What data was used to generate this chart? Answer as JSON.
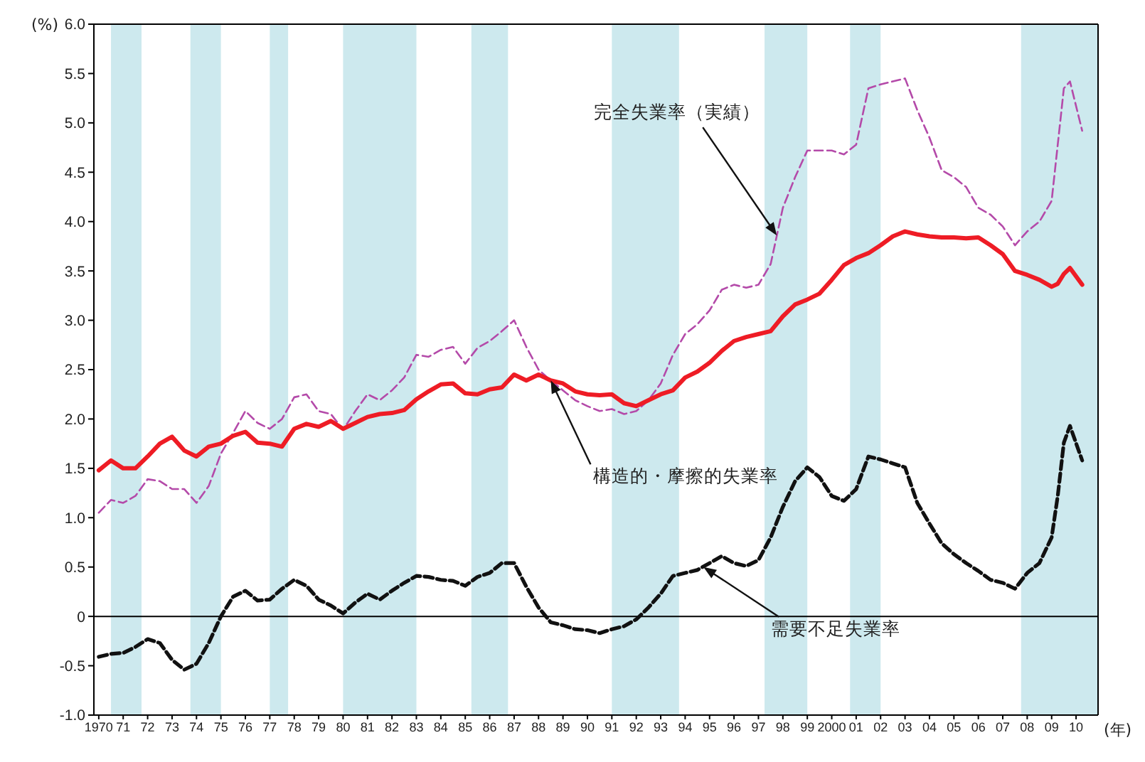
{
  "chart_data": {
    "type": "line",
    "xlabel": "(年)",
    "ylabel": "(%)",
    "x": [
      1970,
      1970.5,
      1971,
      1971.5,
      1972,
      1972.5,
      1973,
      1973.5,
      1974,
      1974.5,
      1975,
      1975.5,
      1976,
      1976.5,
      1977,
      1977.5,
      1978,
      1978.5,
      1979,
      1979.5,
      1980,
      1980.5,
      1981,
      1981.5,
      1982,
      1982.5,
      1983,
      1983.5,
      1984,
      1984.5,
      1985,
      1985.5,
      1986,
      1986.5,
      1987,
      1987.5,
      1988,
      1988.5,
      1989,
      1989.5,
      1990,
      1990.5,
      1991,
      1991.5,
      1992,
      1992.5,
      1993,
      1993.5,
      1994,
      1994.5,
      1995,
      1995.5,
      1996,
      1996.5,
      1997,
      1997.5,
      1998,
      1998.5,
      1999,
      1999.5,
      2000,
      2000.5,
      2001,
      2001.5,
      2002,
      2002.5,
      2003,
      2003.5,
      2004,
      2004.5,
      2005,
      2005.5,
      2006,
      2006.5,
      2007,
      2007.5,
      2008,
      2008.5,
      2009,
      2009.25,
      2009.5,
      2009.75,
      2010.25
    ],
    "series": [
      {
        "color": "#b44aa9",
        "line_style": "dashed",
        "values": [
          1.05,
          1.18,
          1.15,
          1.22,
          1.39,
          1.37,
          1.29,
          1.29,
          1.15,
          1.32,
          1.65,
          1.86,
          2.08,
          1.96,
          1.9,
          2.0,
          2.22,
          2.25,
          2.08,
          2.05,
          1.89,
          2.08,
          2.25,
          2.19,
          2.29,
          2.42,
          2.65,
          2.63,
          2.7,
          2.73,
          2.56,
          2.72,
          2.79,
          2.89,
          3.0,
          2.73,
          2.5,
          2.39,
          2.29,
          2.19,
          2.13,
          2.08,
          2.1,
          2.05,
          2.08,
          2.19,
          2.36,
          2.65,
          2.86,
          2.96,
          3.1,
          3.31,
          3.36,
          3.33,
          3.36,
          3.57,
          4.14,
          4.45,
          4.72,
          4.72,
          4.72,
          4.68,
          4.78,
          5.35,
          5.39,
          5.42,
          5.45,
          5.13,
          4.85,
          4.52,
          4.45,
          4.35,
          4.14,
          4.07,
          3.95,
          3.76,
          3.9,
          4.0,
          4.21,
          4.78,
          5.35,
          5.42,
          4.92
        ]
      },
      {
        "color": "#ee1c25",
        "line_style": "solid",
        "values": [
          1.48,
          1.58,
          1.5,
          1.5,
          1.62,
          1.75,
          1.82,
          1.68,
          1.62,
          1.72,
          1.75,
          1.83,
          1.87,
          1.76,
          1.75,
          1.72,
          1.9,
          1.95,
          1.92,
          1.98,
          1.9,
          1.96,
          2.02,
          2.05,
          2.06,
          2.09,
          2.2,
          2.28,
          2.35,
          2.36,
          2.26,
          2.25,
          2.3,
          2.32,
          2.45,
          2.39,
          2.45,
          2.39,
          2.36,
          2.28,
          2.25,
          2.24,
          2.25,
          2.16,
          2.13,
          2.19,
          2.25,
          2.29,
          2.42,
          2.48,
          2.57,
          2.69,
          2.79,
          2.83,
          2.86,
          2.89,
          3.04,
          3.16,
          3.21,
          3.27,
          3.41,
          3.56,
          3.63,
          3.68,
          3.76,
          3.85,
          3.9,
          3.87,
          3.85,
          3.84,
          3.84,
          3.83,
          3.84,
          3.76,
          3.67,
          3.5,
          3.46,
          3.41,
          3.34,
          3.37,
          3.47,
          3.53,
          3.36
        ]
      },
      {
        "color": "#111111",
        "line_style": "dashed",
        "values": [
          -0.41,
          -0.38,
          -0.37,
          -0.31,
          -0.23,
          -0.27,
          -0.44,
          -0.54,
          -0.48,
          -0.27,
          0,
          0.2,
          0.26,
          0.16,
          0.17,
          0.28,
          0.37,
          0.31,
          0.17,
          0.11,
          0.03,
          0.14,
          0.23,
          0.17,
          0.26,
          0.34,
          0.41,
          0.4,
          0.37,
          0.36,
          0.31,
          0.4,
          0.44,
          0.54,
          0.54,
          0.3,
          0.09,
          -0.06,
          -0.09,
          -0.13,
          -0.14,
          -0.17,
          -0.13,
          -0.1,
          -0.03,
          0.09,
          0.23,
          0.41,
          0.44,
          0.47,
          0.54,
          0.61,
          0.54,
          0.51,
          0.57,
          0.8,
          1.11,
          1.37,
          1.51,
          1.41,
          1.22,
          1.17,
          1.29,
          1.62,
          1.59,
          1.55,
          1.51,
          1.15,
          0.94,
          0.74,
          0.63,
          0.54,
          0.46,
          0.37,
          0.34,
          0.28,
          0.44,
          0.54,
          0.8,
          1.22,
          1.76,
          1.93,
          1.58
        ]
      }
    ],
    "xlim": [
      1969.8,
      2010.9
    ],
    "xticks": [
      1970,
      {
        "value": 1971,
        "label": "71"
      },
      {
        "value": 1972,
        "label": "72"
      },
      {
        "value": 1973,
        "label": "73"
      },
      {
        "value": 1974,
        "label": "74"
      },
      {
        "value": 1975,
        "label": "75"
      },
      {
        "value": 1976,
        "label": "76"
      },
      {
        "value": 1977,
        "label": "77"
      },
      {
        "value": 1978,
        "label": "78"
      },
      {
        "value": 1979,
        "label": "79"
      },
      {
        "value": 1980,
        "label": "80"
      },
      {
        "value": 1981,
        "label": "81"
      },
      {
        "value": 1982,
        "label": "82"
      },
      {
        "value": 1983,
        "label": "83"
      },
      {
        "value": 1984,
        "label": "84"
      },
      {
        "value": 1985,
        "label": "85"
      },
      {
        "value": 1986,
        "label": "86"
      },
      {
        "value": 1987,
        "label": "87"
      },
      {
        "value": 1988,
        "label": "88"
      },
      {
        "value": 1989,
        "label": "89"
      },
      {
        "value": 1990,
        "label": "90"
      },
      {
        "value": 1991,
        "label": "91"
      },
      {
        "value": 1992,
        "label": "92"
      },
      {
        "value": 1993,
        "label": "93"
      },
      {
        "value": 1994,
        "label": "94"
      },
      {
        "value": 1995,
        "label": "95"
      },
      {
        "value": 1996,
        "label": "96"
      },
      {
        "value": 1997,
        "label": "97"
      },
      {
        "value": 1998,
        "label": "98"
      },
      {
        "value": 1999,
        "label": "99"
      },
      2000,
      {
        "value": 2001,
        "label": "01"
      },
      {
        "value": 2002,
        "label": "02"
      },
      {
        "value": 2003,
        "label": "03"
      },
      {
        "value": 2004,
        "label": "04"
      },
      {
        "value": 2005,
        "label": "05"
      },
      {
        "value": 2006,
        "label": "06"
      },
      {
        "value": 2007,
        "label": "07"
      },
      {
        "value": 2008,
        "label": "08"
      },
      {
        "value": 2009,
        "label": "09"
      },
      {
        "value": 2010,
        "label": "10"
      }
    ],
    "ylim": [
      -1,
      6
    ],
    "yticks": [
      {
        "value": -1,
        "label": "-1.0"
      },
      {
        "value": -0.5,
        "label": "-0.5"
      },
      0,
      0.5,
      {
        "value": 1,
        "label": "1.0"
      },
      1.5,
      {
        "value": 2,
        "label": "2.0"
      },
      2.5,
      {
        "value": 3,
        "label": "3.0"
      },
      3.5,
      {
        "value": 4,
        "label": "4.0"
      },
      4.5,
      {
        "value": 5,
        "label": "5.0"
      },
      5.5,
      {
        "value": 6,
        "label": "6.0"
      }
    ],
    "bands": [
      {
        "axis": "x",
        "from": 1970.5,
        "to": 1971.75,
        "color": "#cde9ee"
      },
      {
        "axis": "x",
        "from": 1973.75,
        "to": 1975,
        "color": "#cde9ee"
      },
      {
        "axis": "x",
        "from": 1977,
        "to": 1977.75,
        "color": "#cde9ee"
      },
      {
        "axis": "x",
        "from": 1980,
        "to": 1983,
        "color": "#cde9ee"
      },
      {
        "axis": "x",
        "from": 1985.25,
        "to": 1986.75,
        "color": "#cde9ee"
      },
      {
        "axis": "x",
        "from": 1991,
        "to": 1993.75,
        "color": "#cde9ee"
      },
      {
        "axis": "x",
        "from": 1997.25,
        "to": 1999,
        "color": "#cde9ee"
      },
      {
        "axis": "x",
        "from": 2000.75,
        "to": 2002,
        "color": "#cde9ee"
      },
      {
        "axis": "x",
        "from": 2007.75,
        "to": 2010.9,
        "color": "#cde9ee"
      }
    ],
    "ref_lines": [
      {
        "axis": "y",
        "value": 0,
        "color": "#000000"
      }
    ],
    "annotations": [
      {
        "text": "完全失業率（実績）",
        "x": 1997.75,
        "y": 3.86
      },
      {
        "text": "構造的・摩擦的失業率",
        "x": 1988.5,
        "y": 2.39
      },
      {
        "text": "需要不足失業率",
        "x": 1994.75,
        "y": 0.5
      }
    ],
    "grid": false,
    "legend": false,
    "marker": "none"
  }
}
